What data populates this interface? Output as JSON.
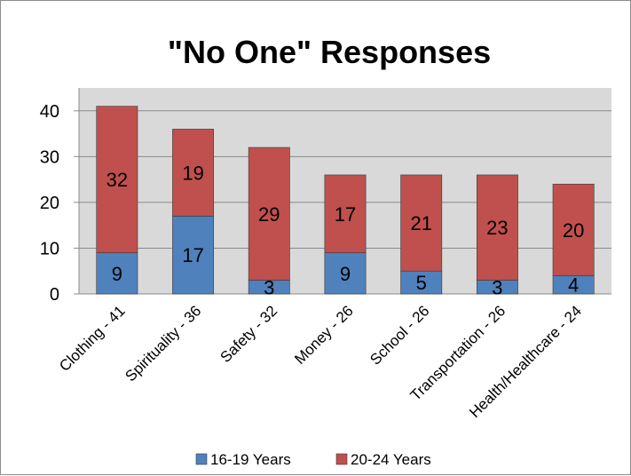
{
  "chart_data": {
    "type": "bar",
    "stacked": true,
    "title": "\"No One\" Responses",
    "categories": [
      "Clothing - 41",
      "Spirituality - 36",
      "Safety - 32",
      "Money - 26",
      "School - 26",
      "Transportation - 26",
      "Health/Healthcare - 24"
    ],
    "series": [
      {
        "name": "16-19 Years",
        "values": [
          9,
          17,
          3,
          9,
          5,
          3,
          4
        ],
        "color": "#4f81bd"
      },
      {
        "name": "20-24 Years",
        "values": [
          32,
          19,
          29,
          17,
          21,
          23,
          20
        ],
        "color": "#c0504d"
      }
    ],
    "ylim": [
      0,
      45
    ],
    "yticks": [
      0,
      10,
      20,
      30,
      40
    ],
    "grid": true,
    "legend_position": "bottom",
    "plot_background": "#d9d9d9"
  }
}
